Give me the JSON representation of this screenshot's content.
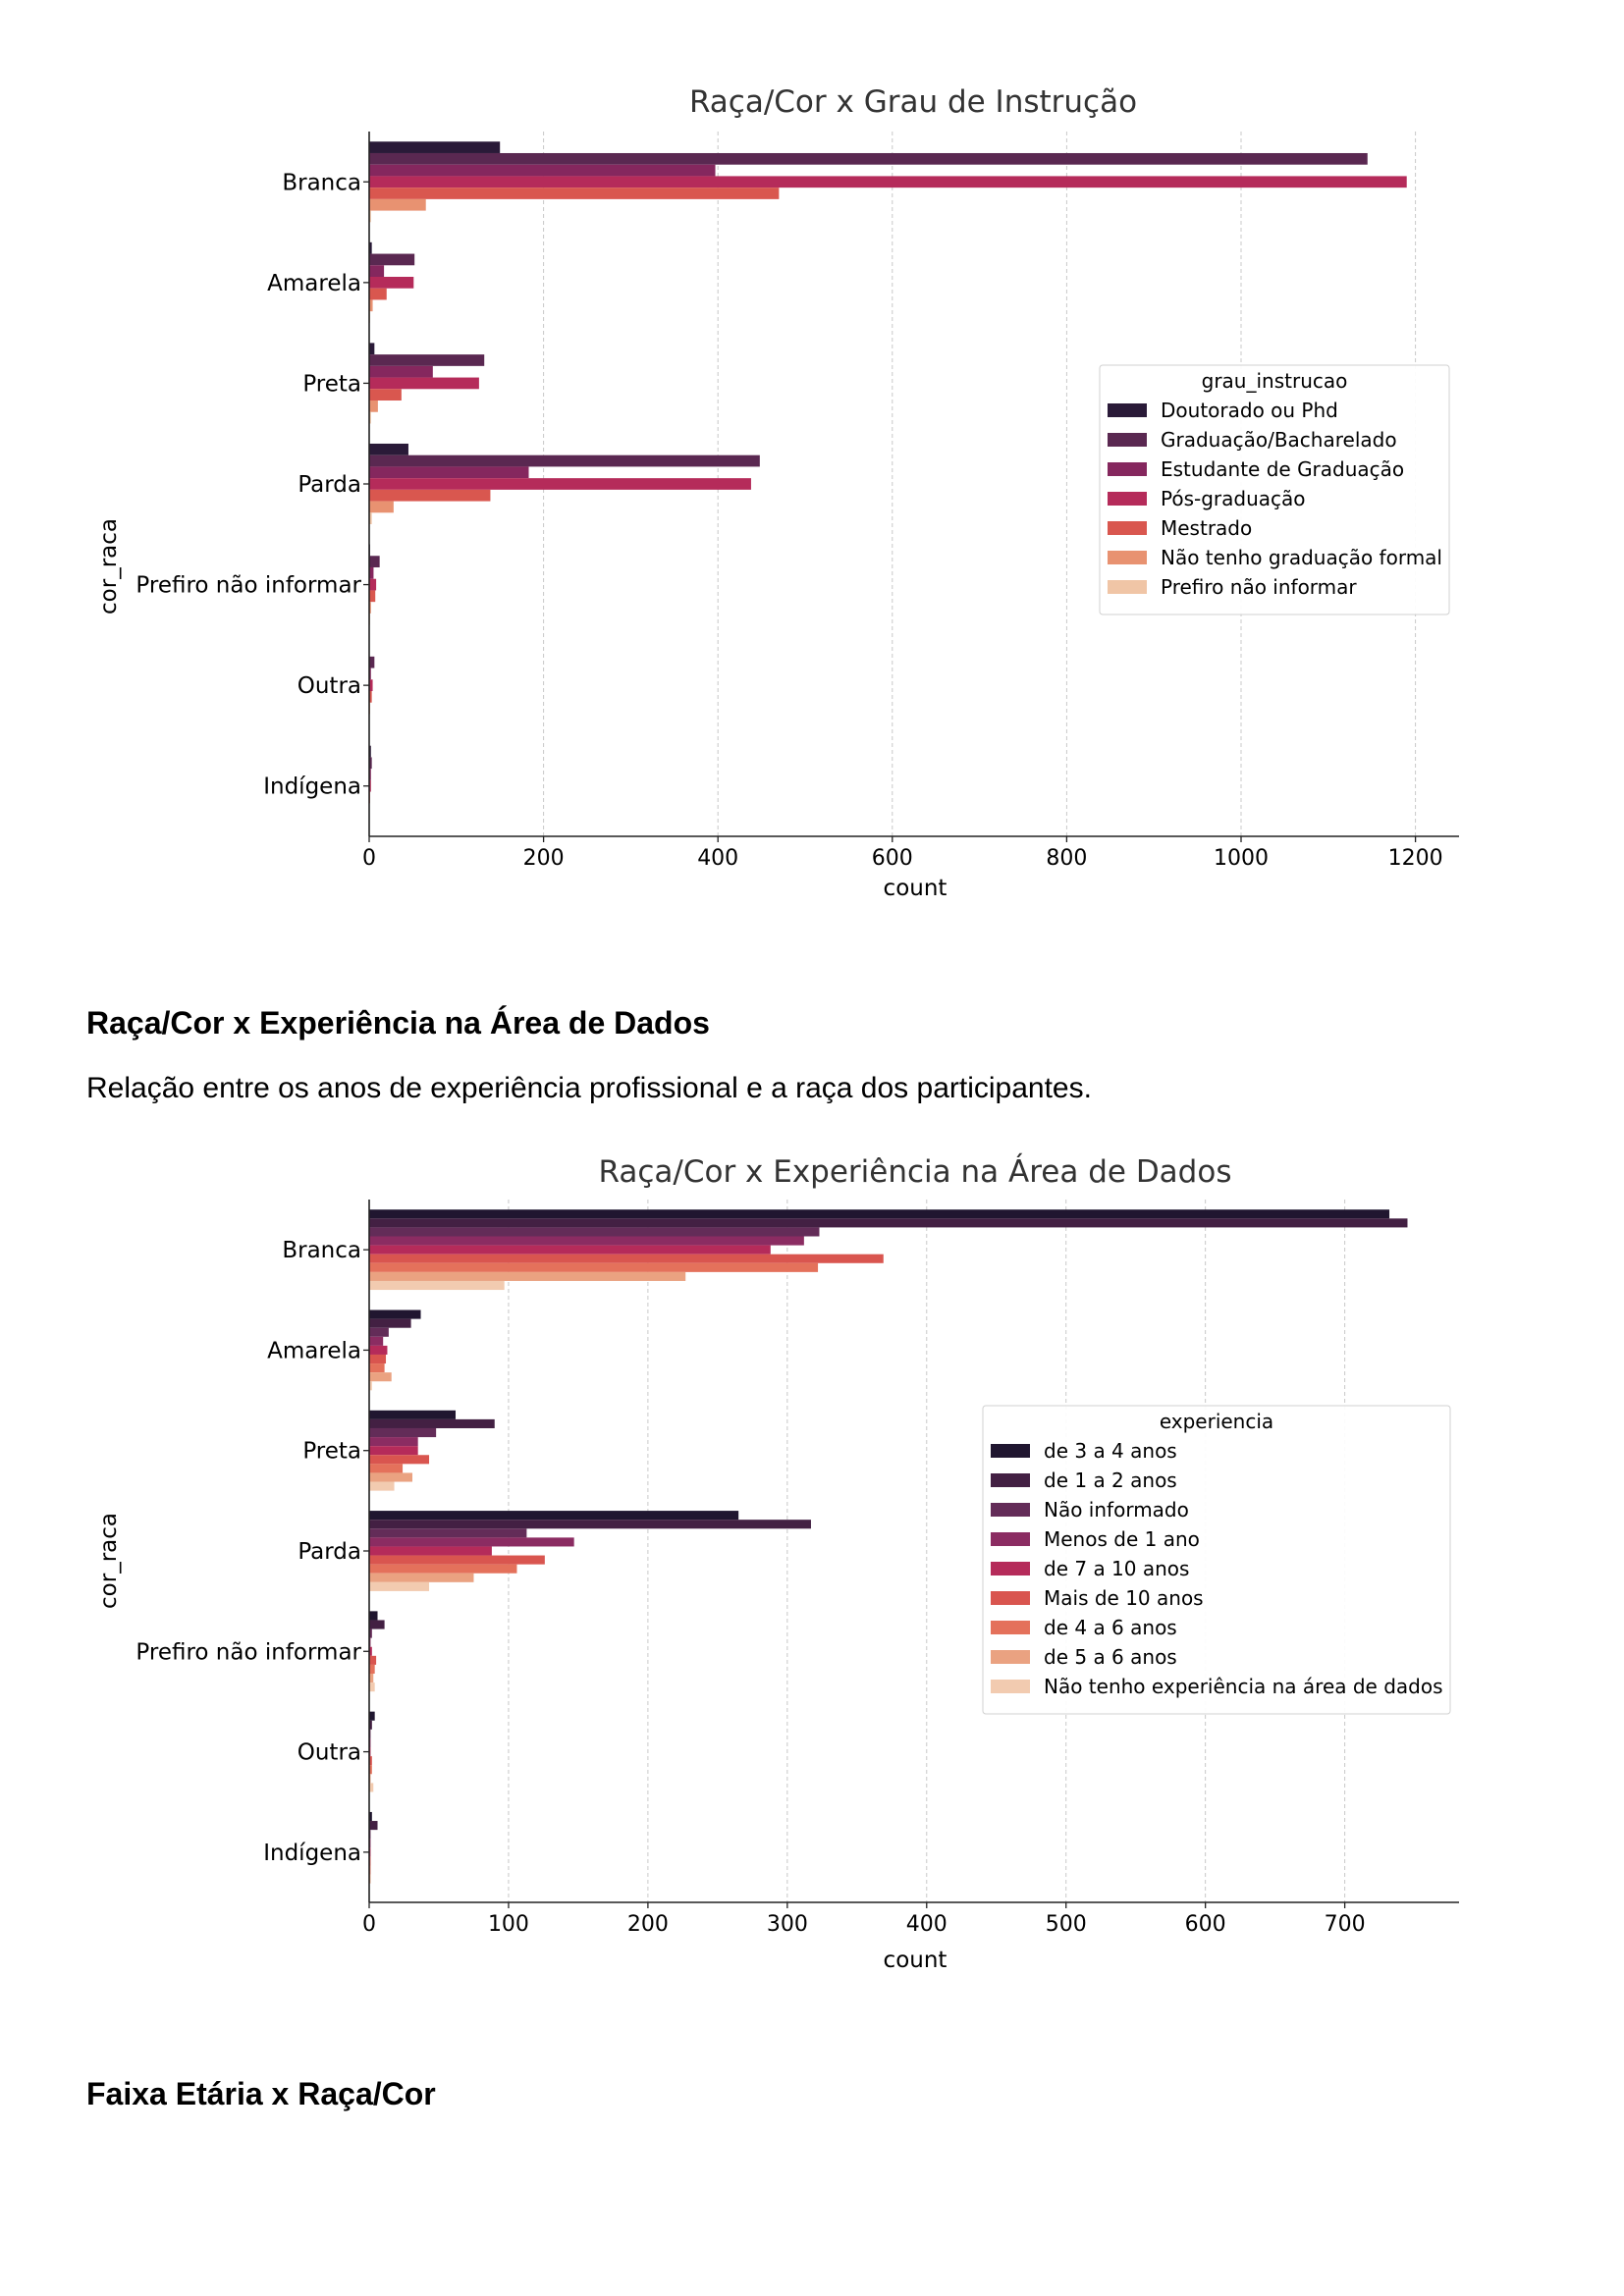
{
  "sections": {
    "experiencia_title": "Raça/Cor x Experiência na Área de Dados",
    "experiencia_text": "Relação entre os anos de experiência profissional e a raça dos participantes.",
    "faixa_title": "Faixa Etária x Raça/Cor"
  },
  "chart_data": [
    {
      "type": "bar",
      "orientation": "horizontal",
      "title": "Raça/Cor x Grau de Instrução",
      "xlabel": "count",
      "ylabel": "cor_raca",
      "xlim": [
        0,
        1250
      ],
      "xticks": [
        0,
        200,
        400,
        600,
        800,
        1000,
        1200
      ],
      "grid": "vertical dashed",
      "legend_title": "grau_instrucao",
      "legend_position": "center-right",
      "categories": [
        "Branca",
        "Amarela",
        "Preta",
        "Parda",
        "Prefiro não informar",
        "Outra",
        "Indígena"
      ],
      "series": [
        {
          "name": "Doutorado ou Phd",
          "color": "#2a1a38",
          "values": [
            150,
            3,
            6,
            45,
            1,
            0,
            2
          ]
        },
        {
          "name": "Graduação/Bacharelado",
          "color": "#5a2851",
          "values": [
            1145,
            52,
            132,
            448,
            12,
            6,
            3
          ]
        },
        {
          "name": "Estudante de Graduação",
          "color": "#85275e",
          "values": [
            397,
            17,
            73,
            183,
            5,
            2,
            2
          ]
        },
        {
          "name": "Pós-graduação",
          "color": "#b52b5a",
          "values": [
            1190,
            51,
            126,
            438,
            8,
            4,
            2
          ]
        },
        {
          "name": "Mestrado",
          "color": "#d9574f",
          "values": [
            470,
            20,
            37,
            139,
            7,
            3,
            1
          ]
        },
        {
          "name": "Não tenho graduação formal",
          "color": "#e89271",
          "values": [
            65,
            4,
            10,
            28,
            2,
            1,
            0
          ]
        },
        {
          "name": "Prefiro não informar",
          "color": "#f0c5a6",
          "values": [
            2,
            1,
            2,
            3,
            1,
            0,
            0
          ]
        }
      ]
    },
    {
      "type": "bar",
      "orientation": "horizontal",
      "title": "Raça/Cor x Experiência na Área de Dados",
      "xlabel": "count",
      "ylabel": "cor_raca",
      "xlim": [
        0,
        782
      ],
      "xticks": [
        0,
        100,
        200,
        300,
        400,
        500,
        600,
        700
      ],
      "grid": "vertical dashed",
      "legend_title": "experiencia",
      "legend_position": "center-right",
      "categories": [
        "Branca",
        "Amarela",
        "Preta",
        "Parda",
        "Prefiro não informar",
        "Outra",
        "Indígena"
      ],
      "series": [
        {
          "name": "de 3 a 4 anos",
          "color": "#201630",
          "values": [
            732,
            37,
            62,
            265,
            6,
            4,
            2
          ]
        },
        {
          "name": "de 1 a 2 anos",
          "color": "#432043",
          "values": [
            745,
            30,
            90,
            317,
            11,
            2,
            6
          ]
        },
        {
          "name": "Não informado",
          "color": "#632c58",
          "values": [
            323,
            14,
            48,
            113,
            2,
            1,
            1
          ]
        },
        {
          "name": "Menos de 1 ano",
          "color": "#8b2c62",
          "values": [
            312,
            10,
            35,
            147,
            1,
            1,
            1
          ]
        },
        {
          "name": "de 7 a 10 anos",
          "color": "#b52b5a",
          "values": [
            288,
            13,
            35,
            88,
            2,
            1,
            1
          ]
        },
        {
          "name": "Mais de 10 anos",
          "color": "#d9554f",
          "values": [
            369,
            12,
            43,
            126,
            5,
            2,
            1
          ]
        },
        {
          "name": "de 4 a 6 anos",
          "color": "#e4715b",
          "values": [
            322,
            11,
            24,
            106,
            4,
            2,
            1
          ]
        },
        {
          "name": "de 5 a 6 anos",
          "color": "#eaa281",
          "values": [
            227,
            16,
            31,
            75,
            3,
            1,
            1
          ]
        },
        {
          "name": "Não tenho experiência na área de dados",
          "color": "#f2cbb0",
          "values": [
            97,
            2,
            18,
            43,
            4,
            3,
            0
          ]
        }
      ]
    }
  ]
}
